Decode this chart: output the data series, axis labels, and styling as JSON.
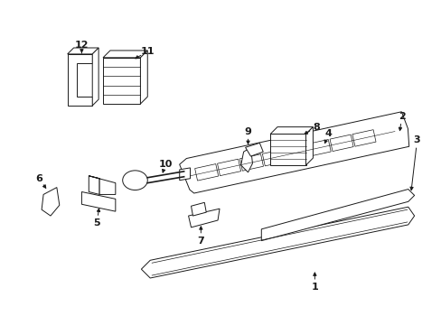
{
  "bg_color": "#ffffff",
  "line_color": "#1a1a1a",
  "lw": 0.7
}
